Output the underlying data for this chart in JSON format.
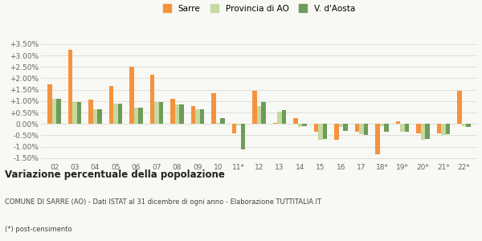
{
  "categories": [
    "02",
    "03",
    "04",
    "05",
    "06",
    "07",
    "08",
    "09",
    "10",
    "11*",
    "12",
    "13",
    "14",
    "15",
    "16",
    "17",
    "18*",
    "19*",
    "20*",
    "21*",
    "22*"
  ],
  "sarre": [
    1.75,
    3.25,
    1.05,
    1.65,
    2.5,
    2.15,
    1.1,
    0.8,
    1.35,
    -0.4,
    1.45,
    0.05,
    0.25,
    -0.35,
    -0.7,
    -0.35,
    -1.35,
    0.1,
    -0.4,
    -0.4,
    1.45
  ],
  "provincia": [
    1.1,
    0.95,
    0.65,
    0.9,
    0.7,
    0.95,
    0.85,
    0.65,
    0.05,
    -0.05,
    0.8,
    0.55,
    -0.15,
    -0.7,
    -0.15,
    -0.45,
    -0.1,
    -0.35,
    -0.7,
    -0.5,
    -0.1
  ],
  "valle": [
    1.1,
    0.95,
    0.65,
    0.9,
    0.7,
    0.95,
    0.85,
    0.65,
    0.25,
    -1.12,
    0.95,
    0.6,
    -0.1,
    -0.65,
    -0.3,
    -0.5,
    -0.35,
    -0.35,
    -0.65,
    -0.45,
    -0.15
  ],
  "sarre_color": "#f5923e",
  "provincia_color": "#c5d9a0",
  "valle_color": "#6e9b5a",
  "bg_color": "#f8f8f4",
  "grid_color": "#e0e0d8",
  "ylim": [
    -1.65,
    3.85
  ],
  "yticks": [
    -1.5,
    -1.0,
    -0.5,
    0.0,
    0.5,
    1.0,
    1.5,
    2.0,
    2.5,
    3.0,
    3.5
  ],
  "ytick_labels": [
    "-1.50%",
    "-1.00%",
    "-0.50%",
    "0.00%",
    "+0.50%",
    "+1.00%",
    "+1.50%",
    "+2.00%",
    "+2.50%",
    "+3.00%",
    "+3.50%"
  ],
  "legend_labels": [
    "Sarre",
    "Provincia di AO",
    "V. d'Aosta"
  ],
  "title_bold": "Variazione percentuale della popolazione",
  "subtitle": "COMUNE DI SARRE (AO) - Dati ISTAT al 31 dicembre di ogni anno - Elaborazione TUTTITALIA.IT",
  "footnote": "(*) post-censimento",
  "bar_width": 0.22,
  "tick_fontsize": 6.5,
  "legend_fontsize": 7.5
}
